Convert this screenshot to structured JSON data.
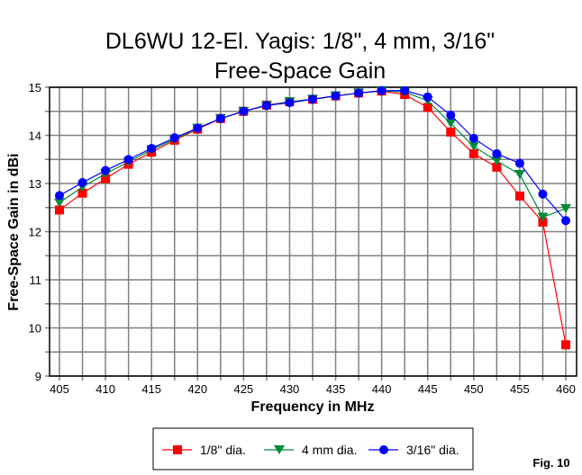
{
  "chart_data": {
    "type": "line",
    "title": "DL6WU 12-El. Yagis: 1/8\", 4 mm, 3/16\"",
    "subtitle": "Free-Space Gain",
    "xlabel": "Frequency in MHz",
    "ylabel": "Free-Space Gain in dBi",
    "xlim": [
      405,
      460
    ],
    "ylim": [
      9,
      15
    ],
    "xticks": [
      "405",
      "410",
      "415",
      "420",
      "425",
      "430",
      "435",
      "440",
      "445",
      "450",
      "455",
      "460"
    ],
    "yticks": [
      "9",
      "10",
      "11",
      "12",
      "13",
      "14",
      "15"
    ],
    "grid": true,
    "legend_position": "bottom",
    "x": [
      405,
      407.5,
      410,
      412.5,
      415,
      417.5,
      420,
      422.5,
      425,
      427.5,
      430,
      432.5,
      435,
      437.5,
      440,
      442.5,
      445,
      447.5,
      450,
      452.5,
      455,
      457.5,
      460
    ],
    "series": [
      {
        "name": "1/8\" dia.",
        "color": "#ff0000",
        "marker": "square",
        "values": [
          12.45,
          12.8,
          13.1,
          13.4,
          13.65,
          13.9,
          14.13,
          14.35,
          14.5,
          14.63,
          14.7,
          14.75,
          14.82,
          14.88,
          14.92,
          14.85,
          14.58,
          14.07,
          13.62,
          13.34,
          12.74,
          12.2,
          9.65
        ]
      },
      {
        "name": "4 mm dia.",
        "color": "#008a3a",
        "marker": "triangle-down",
        "values": [
          12.6,
          12.93,
          13.2,
          13.45,
          13.7,
          13.92,
          14.15,
          14.35,
          14.5,
          14.62,
          14.7,
          14.75,
          14.82,
          14.88,
          14.93,
          14.9,
          14.72,
          14.25,
          13.77,
          13.47,
          13.19,
          12.3,
          12.48
        ]
      },
      {
        "name": "3/16\" dia.",
        "color": "#0000ff",
        "marker": "circle",
        "values": [
          12.75,
          13.02,
          13.27,
          13.5,
          13.73,
          13.95,
          14.15,
          14.35,
          14.5,
          14.62,
          14.68,
          14.75,
          14.82,
          14.88,
          14.93,
          14.93,
          14.8,
          14.42,
          13.94,
          13.62,
          13.42,
          12.78,
          12.23
        ]
      }
    ],
    "figure_label": "Fig. 10"
  }
}
